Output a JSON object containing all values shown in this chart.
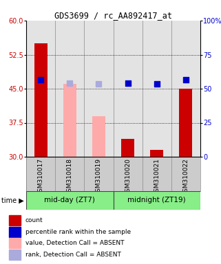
{
  "title": "GDS3699 / rc_AA892417_at",
  "samples": [
    "GSM310017",
    "GSM310018",
    "GSM310019",
    "GSM310020",
    "GSM310021",
    "GSM310022"
  ],
  "bar_values": [
    55.0,
    46.0,
    39.0,
    34.0,
    31.5,
    45.0
  ],
  "bar_colors": [
    "#cc0000",
    "#ffaaaa",
    "#ffaaaa",
    "#cc0000",
    "#cc0000",
    "#cc0000"
  ],
  "dot_values": [
    47.0,
    46.2,
    46.0,
    46.2,
    46.0,
    47.0
  ],
  "dot_colors": [
    "#0000cc",
    "#aaaadd",
    "#aaaadd",
    "#0000cc",
    "#0000cc",
    "#0000cc"
  ],
  "ylim_left": [
    30,
    60
  ],
  "ylim_right": [
    0,
    100
  ],
  "yticks_left": [
    30,
    37.5,
    45,
    52.5,
    60
  ],
  "yticks_right": [
    0,
    25,
    50,
    75,
    100
  ],
  "group1_label": "mid-day (ZT7)",
  "group2_label": "midnight (ZT19)",
  "group_color": "#88ee88",
  "legend_items": [
    {
      "label": "count",
      "color": "#cc0000"
    },
    {
      "label": "percentile rank within the sample",
      "color": "#0000cc"
    },
    {
      "label": "value, Detection Call = ABSENT",
      "color": "#ffaaaa"
    },
    {
      "label": "rank, Detection Call = ABSENT",
      "color": "#aaaadd"
    }
  ],
  "bar_width": 0.45,
  "dot_size": 28,
  "xlabel_color": "#cc0000",
  "ylabel_right_color": "#0000cc",
  "col_bg_color": "#cccccc",
  "plot_face_color": "#ffffff"
}
